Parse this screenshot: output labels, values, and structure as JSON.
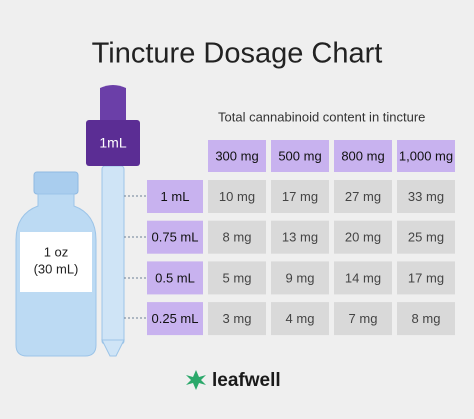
{
  "header": {
    "title": "Tincture Dosage Chart"
  },
  "bottle": {
    "label_line1": "1 oz",
    "label_line2": "(30 mL)"
  },
  "dropper": {
    "label": "1mL"
  },
  "table": {
    "caption": "Total cannabinoid content in tincture",
    "columns": [
      "300 mg",
      "500 mg",
      "800 mg",
      "1,000 mg"
    ],
    "rows": [
      {
        "label": "1 mL",
        "cells": [
          "10 mg",
          "17 mg",
          "27 mg",
          "33 mg"
        ]
      },
      {
        "label": "0.75 mL",
        "cells": [
          "8 mg",
          "13 mg",
          "20 mg",
          "25 mg"
        ]
      },
      {
        "label": "0.5 mL",
        "cells": [
          "5 mg",
          "9 mg",
          "14 mg",
          "17 mg"
        ]
      },
      {
        "label": "0.25 mL",
        "cells": [
          "3 mg",
          "4 mg",
          "7 mg",
          "8 mg"
        ]
      }
    ]
  },
  "footer": {
    "logo": "leafwell"
  }
}
